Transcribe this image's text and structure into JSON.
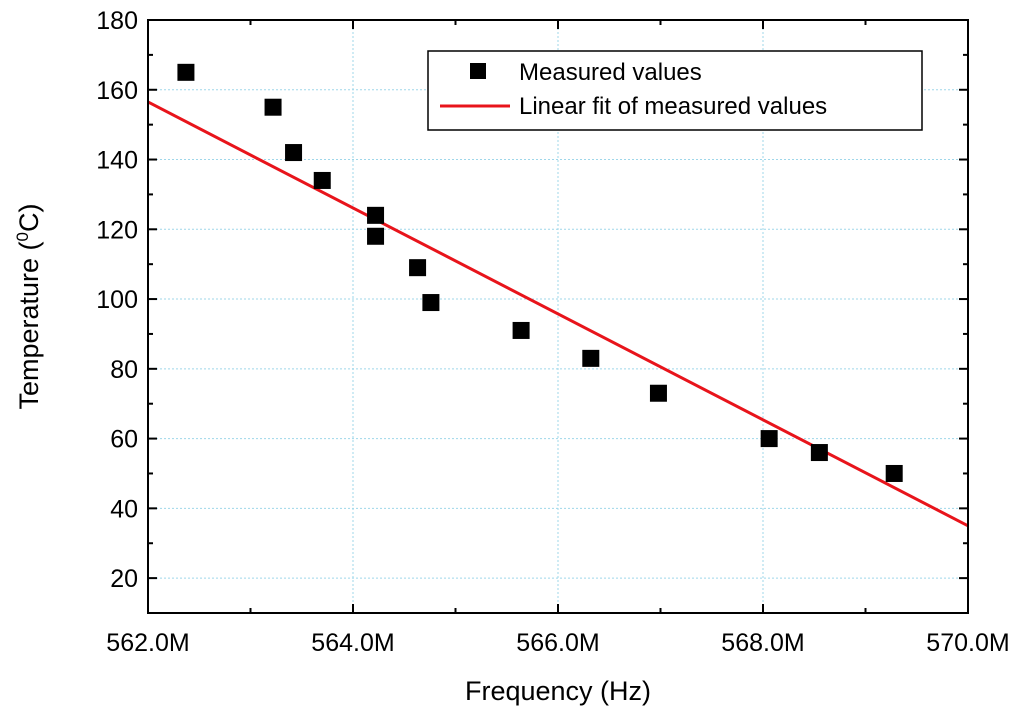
{
  "chart_data": {
    "type": "scatter",
    "title": "",
    "xlabel": "Frequency (Hz)",
    "ylabel": "Temperature (",
    "ylabel_sup": "0",
    "ylabel_tail": "C)",
    "xlim": [
      562.0,
      570.0
    ],
    "ylim": [
      10,
      180
    ],
    "x_ticks": [
      562.0,
      564.0,
      566.0,
      568.0,
      570.0
    ],
    "x_tick_labels": [
      "562.0M",
      "564.0M",
      "566.0M",
      "568.0M",
      "570.0M"
    ],
    "y_ticks": [
      20,
      40,
      60,
      80,
      100,
      120,
      140,
      160,
      180
    ],
    "y_tick_labels": [
      "20",
      "40",
      "60",
      "80",
      "100",
      "120",
      "140",
      "160",
      "180"
    ],
    "grid": true,
    "legend_position": "top-right",
    "series": [
      {
        "name": "Measured values",
        "kind": "scatter",
        "marker": "square",
        "color": "#000000",
        "x": [
          562.37,
          563.22,
          563.42,
          563.7,
          564.22,
          564.22,
          564.63,
          564.76,
          565.64,
          566.32,
          566.98,
          568.06,
          568.55,
          569.28
        ],
        "y": [
          165,
          155,
          142,
          134,
          124,
          118,
          109,
          99,
          91,
          83,
          73,
          60,
          56,
          50
        ]
      },
      {
        "name": "Linear fit of measured values",
        "kind": "line",
        "color": "#e8141b",
        "x": [
          562.0,
          570.0
        ],
        "y": [
          156.5,
          35.0
        ]
      }
    ]
  }
}
